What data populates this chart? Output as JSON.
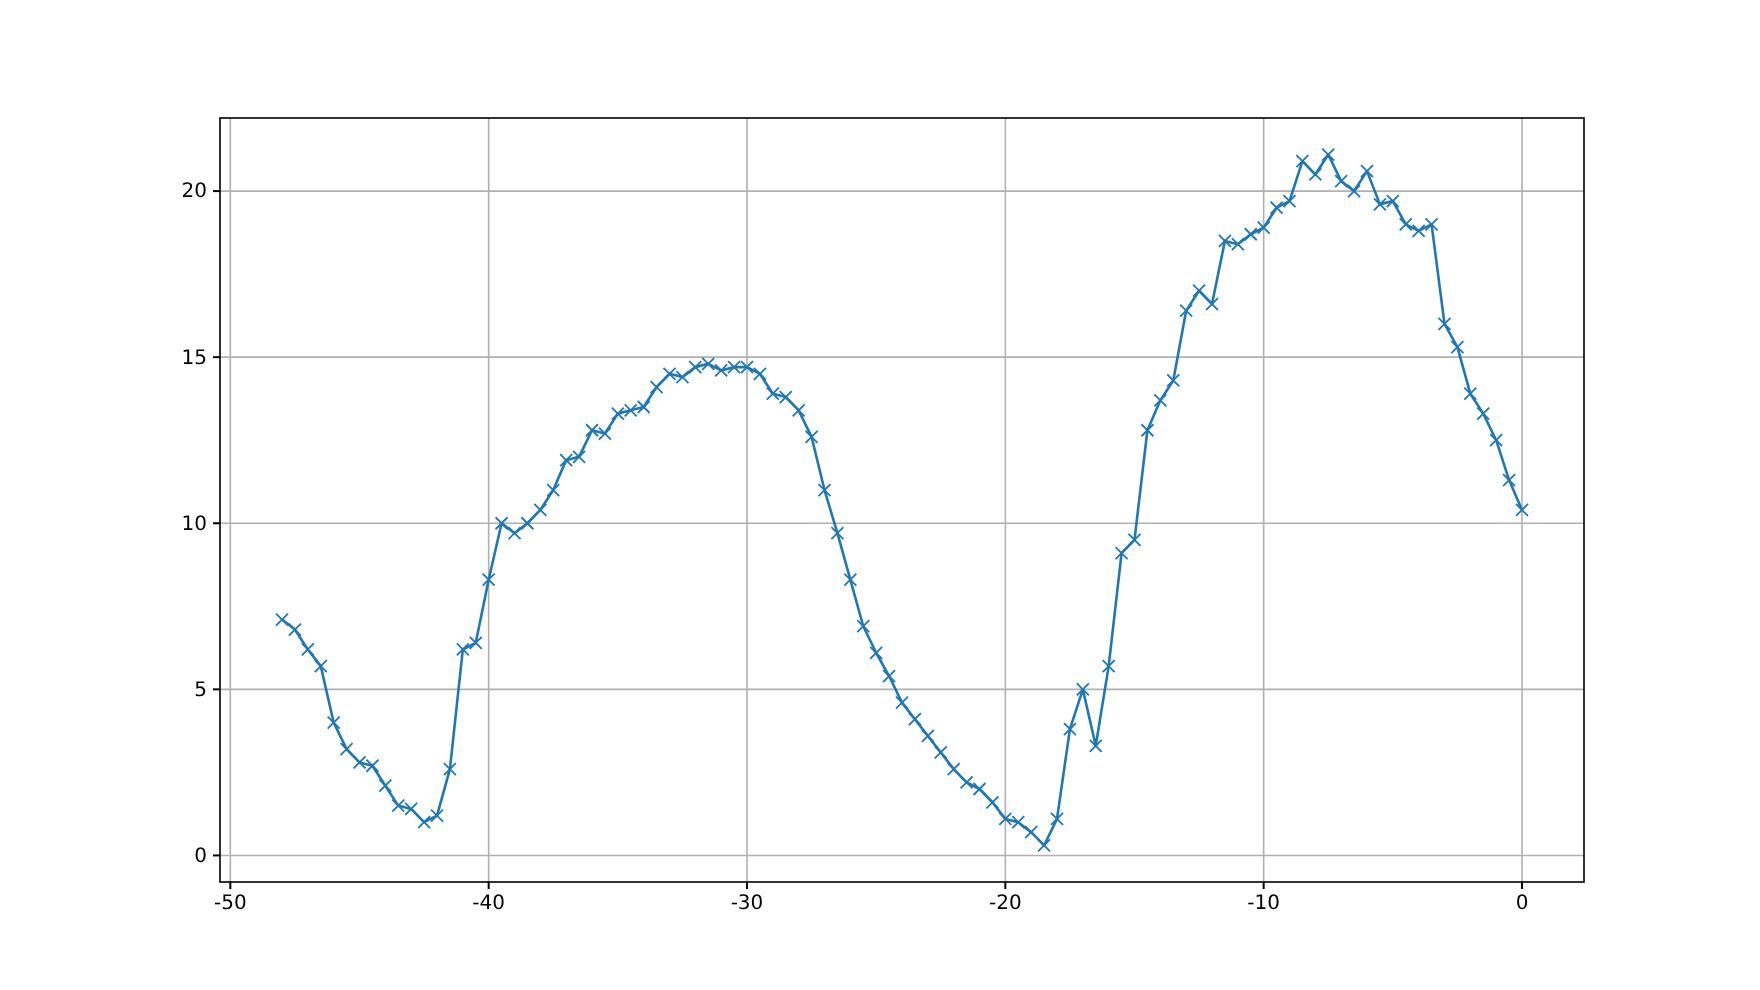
{
  "chart_data": {
    "type": "line",
    "x": [
      -48,
      -47.5,
      -47,
      -46.5,
      -46,
      -45.5,
      -45,
      -44.5,
      -44,
      -43.5,
      -43,
      -42.5,
      -42,
      -41.5,
      -41,
      -40.5,
      -40,
      -39.5,
      -39,
      -38.5,
      -38,
      -37.5,
      -37,
      -36.5,
      -36,
      -35.5,
      -35,
      -34.5,
      -34,
      -33.5,
      -33,
      -32.5,
      -32,
      -31.5,
      -31,
      -30.5,
      -30,
      -29.5,
      -29,
      -28.5,
      -28,
      -27.5,
      -27,
      -26.5,
      -26,
      -25.5,
      -25,
      -24.5,
      -24,
      -23.5,
      -23,
      -22.5,
      -22,
      -21.5,
      -21,
      -20.5,
      -20,
      -19.5,
      -19,
      -18.5,
      -18,
      -17.5,
      -17,
      -16.5,
      -16,
      -15.5,
      -15,
      -14.5,
      -14,
      -13.5,
      -13,
      -12.5,
      -12,
      -11.5,
      -11,
      -10.5,
      -10,
      -9.5,
      -9,
      -8.5,
      -8,
      -7.5,
      -7,
      -6.5,
      -6,
      -5.5,
      -5,
      -4.5,
      -4,
      -3.5,
      -3,
      -2.5,
      -2,
      -1.5,
      -1,
      -0.5,
      0
    ],
    "series": [
      {
        "color": "#1f77b4",
        "values": [
          7.1,
          6.8,
          6.2,
          5.7,
          4.0,
          3.2,
          2.8,
          2.7,
          2.1,
          1.5,
          1.4,
          1.0,
          1.2,
          2.6,
          6.2,
          6.4,
          8.3,
          10.0,
          9.7,
          10.0,
          10.4,
          11.0,
          11.9,
          12.0,
          12.8,
          12.7,
          13.3,
          13.4,
          13.5,
          14.1,
          14.5,
          14.4,
          14.7,
          14.8,
          14.6,
          14.7,
          14.7,
          14.5,
          13.9,
          13.8,
          13.4,
          12.6,
          11.0,
          9.7,
          8.3,
          6.9,
          6.1,
          5.4,
          4.6,
          4.1,
          3.6,
          3.1,
          2.6,
          2.2,
          2.0,
          1.6,
          1.1,
          1.0,
          0.7,
          0.3,
          1.1,
          3.8,
          5.0,
          3.3,
          5.7,
          9.1,
          9.5,
          12.8,
          13.7,
          14.3,
          16.4,
          17.0,
          16.6,
          18.5,
          18.4,
          18.7,
          18.9,
          19.5,
          19.7,
          20.9,
          20.5,
          21.1,
          20.3,
          20.0,
          20.6,
          19.6,
          19.7,
          19.0,
          18.8,
          19.0,
          16.0,
          15.3,
          13.9,
          13.3,
          12.5,
          11.3,
          10.4
        ]
      }
    ],
    "xlim": [
      -50.4,
      2.4
    ],
    "ylim": [
      -0.8,
      22.2
    ],
    "xticks": [
      -50,
      -40,
      -30,
      -20,
      -10,
      0
    ],
    "yticks": [
      0,
      5,
      10,
      15,
      20
    ],
    "grid": true,
    "marker": "cross",
    "line_style": "solid"
  }
}
